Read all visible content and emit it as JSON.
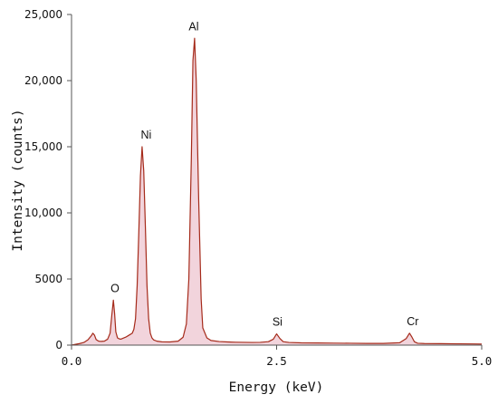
{
  "chart_data": {
    "type": "line",
    "title": "",
    "xlabel": "Energy (keV)",
    "ylabel": "Intensity (counts)",
    "xlim": [
      0.0,
      5.0
    ],
    "ylim": [
      0,
      25000
    ],
    "x_tick_labels": [
      {
        "value": 0.0,
        "label": "0.0"
      },
      {
        "value": 2.5,
        "label": "2.5"
      },
      {
        "value": 5.0,
        "label": "5.0"
      }
    ],
    "y_tick_labels": [
      {
        "value": 0,
        "label": "0"
      },
      {
        "value": 5000,
        "label": "5000"
      },
      {
        "value": 10000,
        "label": "10,000"
      },
      {
        "value": 15000,
        "label": "15,000"
      },
      {
        "value": 20000,
        "label": "20,000"
      },
      {
        "value": 25000,
        "label": "25,000"
      }
    ],
    "grid": false,
    "line_color": "#a52a1a",
    "fill_color": "#f2d4dc",
    "series": [
      {
        "x": [
          0.0,
          0.05,
          0.1,
          0.15,
          0.2,
          0.24,
          0.26,
          0.28,
          0.3,
          0.33,
          0.36,
          0.4,
          0.44,
          0.47,
          0.49,
          0.51,
          0.525,
          0.54,
          0.56,
          0.58,
          0.6,
          0.62,
          0.66,
          0.7,
          0.74,
          0.76,
          0.78,
          0.8,
          0.82,
          0.84,
          0.86,
          0.88,
          0.9,
          0.92,
          0.94,
          0.96,
          0.98,
          1.0,
          1.04,
          1.1,
          1.2,
          1.3,
          1.36,
          1.4,
          1.43,
          1.46,
          1.48,
          1.5,
          1.52,
          1.55,
          1.58,
          1.6,
          1.65,
          1.7,
          1.8,
          1.9,
          2.0,
          2.1,
          2.2,
          2.3,
          2.4,
          2.46,
          2.5,
          2.54,
          2.58,
          2.65,
          2.8,
          3.0,
          3.2,
          3.4,
          3.6,
          3.8,
          4.0,
          4.08,
          4.12,
          4.15,
          4.18,
          4.22,
          4.3,
          4.5,
          4.7,
          4.9,
          5.0
        ],
        "y": [
          0,
          60,
          120,
          200,
          400,
          700,
          900,
          750,
          420,
          300,
          280,
          300,
          450,
          900,
          2200,
          3400,
          2400,
          1000,
          550,
          480,
          450,
          500,
          600,
          750,
          900,
          1200,
          2000,
          4500,
          8500,
          12800,
          15000,
          13200,
          9000,
          4500,
          2000,
          900,
          550,
          400,
          300,
          250,
          240,
          300,
          600,
          1600,
          5000,
          14000,
          21500,
          23200,
          20000,
          11000,
          3500,
          1300,
          550,
          350,
          270,
          240,
          220,
          210,
          200,
          210,
          260,
          450,
          850,
          500,
          260,
          200,
          170,
          160,
          150,
          140,
          130,
          130,
          180,
          500,
          900,
          600,
          250,
          140,
          120,
          110,
          100,
          90,
          80
        ]
      }
    ],
    "annotations": [
      {
        "text": "O",
        "x": 0.53,
        "y": 3400
      },
      {
        "text": "Ni",
        "x": 0.91,
        "y": 15000
      },
      {
        "text": "Al",
        "x": 1.49,
        "y": 23200
      },
      {
        "text": "Si",
        "x": 2.51,
        "y": 850
      },
      {
        "text": "Cr",
        "x": 4.16,
        "y": 900
      }
    ]
  }
}
